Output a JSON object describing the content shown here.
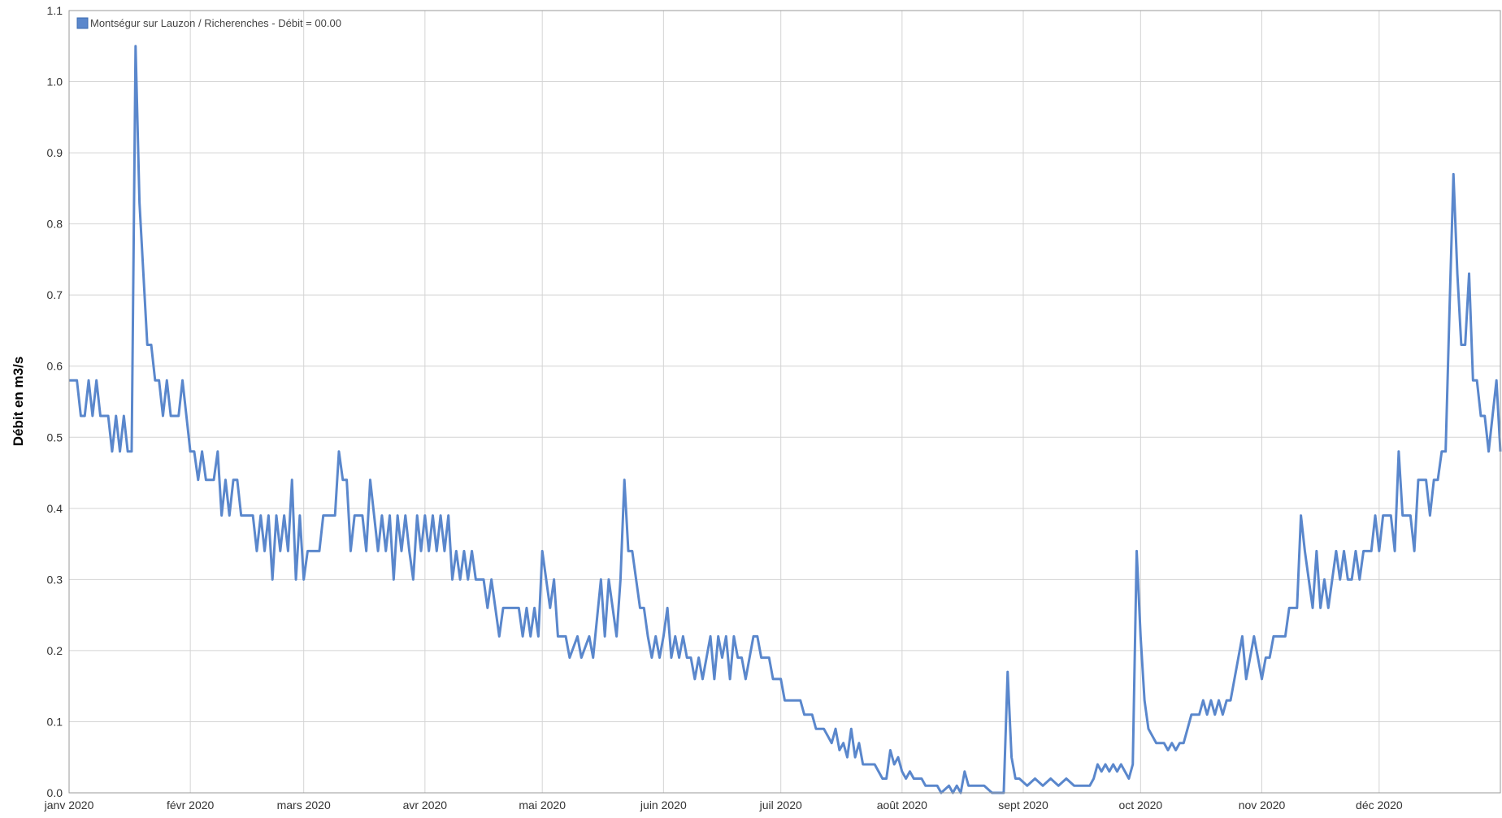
{
  "chart_data": {
    "type": "line",
    "y_label": "Débit en m3/s",
    "grid": true,
    "legend_position": "top-left",
    "xlim": [
      0,
      366
    ],
    "xticks": [
      {
        "value": 0,
        "label": "janv 2020"
      },
      {
        "value": 31,
        "label": "févr 2020"
      },
      {
        "value": 60,
        "label": "mars 2020"
      },
      {
        "value": 91,
        "label": "avr 2020"
      },
      {
        "value": 121,
        "label": "mai 2020"
      },
      {
        "value": 152,
        "label": "juin 2020"
      },
      {
        "value": 182,
        "label": "juil 2020"
      },
      {
        "value": 213,
        "label": "août 2020"
      },
      {
        "value": 244,
        "label": "sept 2020"
      },
      {
        "value": 274,
        "label": "oct 2020"
      },
      {
        "value": 305,
        "label": "nov 2020"
      },
      {
        "value": 335,
        "label": "déc 2020"
      }
    ],
    "ylim": [
      0,
      1.1
    ],
    "yticks": [
      {
        "value": 0,
        "label": "0.0"
      },
      0.1,
      0.2,
      0.3,
      0.4,
      0.5,
      0.6,
      0.7,
      0.8,
      0.9,
      {
        "value": 1,
        "label": "1.0"
      },
      1.1
    ],
    "x": [
      0,
      1,
      2,
      3,
      4,
      5,
      6,
      7,
      8,
      9,
      10,
      11,
      12,
      13,
      14,
      15,
      16,
      17,
      18,
      19,
      20,
      21,
      22,
      23,
      24,
      25,
      26,
      27,
      28,
      29,
      30,
      31,
      32,
      33,
      34,
      35,
      36,
      37,
      38,
      39,
      40,
      41,
      42,
      43,
      44,
      45,
      46,
      47,
      48,
      49,
      50,
      51,
      52,
      53,
      54,
      55,
      56,
      57,
      58,
      59,
      60,
      61,
      62,
      63,
      64,
      65,
      66,
      67,
      68,
      69,
      70,
      71,
      72,
      73,
      74,
      75,
      76,
      77,
      78,
      79,
      80,
      81,
      82,
      83,
      84,
      85,
      86,
      87,
      88,
      89,
      90,
      91,
      92,
      93,
      94,
      95,
      96,
      97,
      98,
      99,
      100,
      101,
      102,
      103,
      104,
      105,
      106,
      107,
      108,
      109,
      110,
      111,
      113,
      115,
      116,
      117,
      118,
      119,
      120,
      121,
      123,
      124,
      125,
      127,
      128,
      130,
      131,
      133,
      134,
      136,
      137,
      138,
      139,
      140,
      141,
      142,
      143,
      144,
      145,
      146,
      147,
      148,
      149,
      150,
      151,
      152,
      153,
      154,
      155,
      156,
      157,
      158,
      159,
      160,
      161,
      162,
      163,
      164,
      165,
      166,
      167,
      168,
      169,
      170,
      171,
      172,
      173,
      174,
      175,
      176,
      177,
      178,
      179,
      180,
      181,
      182,
      183,
      185,
      187,
      188,
      190,
      191,
      193,
      194,
      195,
      196,
      197,
      198,
      199,
      200,
      201,
      202,
      203,
      204,
      206,
      207,
      208,
      209,
      210,
      211,
      212,
      213,
      214,
      215,
      216,
      218,
      219,
      221,
      222,
      223,
      225,
      226,
      227,
      228,
      229,
      230,
      232,
      234,
      236,
      239,
      240,
      241,
      242,
      243,
      245,
      247,
      249,
      251,
      253,
      255,
      257,
      259,
      261,
      262,
      263,
      264,
      265,
      266,
      267,
      268,
      269,
      270,
      271,
      272,
      273,
      274,
      275,
      276,
      277,
      278,
      280,
      281,
      282,
      283,
      284,
      285,
      286,
      287,
      289,
      290,
      291,
      292,
      293,
      294,
      295,
      296,
      297,
      298,
      299,
      300,
      301,
      302,
      303,
      304,
      305,
      306,
      307,
      308,
      310,
      311,
      312,
      314,
      315,
      316,
      317,
      318,
      319,
      320,
      321,
      322,
      323,
      324,
      325,
      326,
      327,
      328,
      329,
      330,
      331,
      333,
      334,
      335,
      336,
      338,
      339,
      340,
      341,
      343,
      344,
      345,
      347,
      348,
      349,
      350,
      351,
      352,
      353,
      354,
      355,
      356,
      357,
      358,
      359,
      360,
      361,
      362,
      363,
      364,
      365,
      366
    ],
    "series": [
      {
        "name": "Montségur sur Lauzon / Richerenches - Débit = 00.00",
        "color": "#5a87cc",
        "values": [
          0.58,
          0.58,
          0.58,
          0.53,
          0.53,
          0.58,
          0.53,
          0.58,
          0.53,
          0.53,
          0.53,
          0.48,
          0.53,
          0.48,
          0.53,
          0.48,
          0.48,
          1.05,
          0.83,
          0.73,
          0.63,
          0.63,
          0.58,
          0.58,
          0.53,
          0.58,
          0.53,
          0.53,
          0.53,
          0.58,
          0.53,
          0.48,
          0.48,
          0.44,
          0.48,
          0.44,
          0.44,
          0.44,
          0.48,
          0.39,
          0.44,
          0.39,
          0.44,
          0.44,
          0.39,
          0.39,
          0.39,
          0.39,
          0.34,
          0.39,
          0.34,
          0.39,
          0.3,
          0.39,
          0.34,
          0.39,
          0.34,
          0.44,
          0.3,
          0.39,
          0.3,
          0.34,
          0.34,
          0.34,
          0.34,
          0.39,
          0.39,
          0.39,
          0.39,
          0.48,
          0.44,
          0.44,
          0.34,
          0.39,
          0.39,
          0.39,
          0.34,
          0.44,
          0.39,
          0.34,
          0.39,
          0.34,
          0.39,
          0.3,
          0.39,
          0.34,
          0.39,
          0.34,
          0.3,
          0.39,
          0.34,
          0.39,
          0.34,
          0.39,
          0.34,
          0.39,
          0.34,
          0.39,
          0.3,
          0.34,
          0.3,
          0.34,
          0.3,
          0.34,
          0.3,
          0.3,
          0.3,
          0.26,
          0.3,
          0.26,
          0.22,
          0.26,
          0.26,
          0.26,
          0.22,
          0.26,
          0.22,
          0.26,
          0.22,
          0.34,
          0.26,
          0.3,
          0.22,
          0.22,
          0.19,
          0.22,
          0.19,
          0.22,
          0.19,
          0.3,
          0.22,
          0.3,
          0.26,
          0.22,
          0.3,
          0.44,
          0.34,
          0.34,
          0.3,
          0.26,
          0.26,
          0.22,
          0.19,
          0.22,
          0.19,
          0.22,
          0.26,
          0.19,
          0.22,
          0.19,
          0.22,
          0.19,
          0.19,
          0.16,
          0.19,
          0.16,
          0.19,
          0.22,
          0.16,
          0.22,
          0.19,
          0.22,
          0.16,
          0.22,
          0.19,
          0.19,
          0.16,
          0.19,
          0.22,
          0.22,
          0.19,
          0.19,
          0.19,
          0.16,
          0.16,
          0.16,
          0.13,
          0.13,
          0.13,
          0.11,
          0.11,
          0.09,
          0.09,
          0.08,
          0.07,
          0.09,
          0.06,
          0.07,
          0.05,
          0.09,
          0.05,
          0.07,
          0.04,
          0.04,
          0.04,
          0.03,
          0.02,
          0.02,
          0.06,
          0.04,
          0.05,
          0.03,
          0.02,
          0.03,
          0.02,
          0.02,
          0.01,
          0.01,
          0.01,
          0,
          0.01,
          0,
          0.01,
          0,
          0.03,
          0.01,
          0.01,
          0.01,
          0,
          0,
          0.17,
          0.05,
          0.02,
          0.02,
          0.01,
          0.02,
          0.01,
          0.02,
          0.01,
          0.02,
          0.01,
          0.01,
          0.01,
          0.02,
          0.04,
          0.03,
          0.04,
          0.03,
          0.04,
          0.03,
          0.04,
          0.03,
          0.02,
          0.04,
          0.34,
          0.22,
          0.13,
          0.09,
          0.08,
          0.07,
          0.07,
          0.06,
          0.07,
          0.06,
          0.07,
          0.07,
          0.09,
          0.11,
          0.11,
          0.13,
          0.11,
          0.13,
          0.11,
          0.13,
          0.11,
          0.13,
          0.13,
          0.16,
          0.19,
          0.22,
          0.16,
          0.19,
          0.22,
          0.19,
          0.16,
          0.19,
          0.19,
          0.22,
          0.22,
          0.22,
          0.26,
          0.26,
          0.39,
          0.34,
          0.3,
          0.26,
          0.34,
          0.26,
          0.3,
          0.26,
          0.3,
          0.34,
          0.3,
          0.34,
          0.3,
          0.3,
          0.34,
          0.3,
          0.34,
          0.34,
          0.39,
          0.34,
          0.39,
          0.39,
          0.34,
          0.48,
          0.39,
          0.39,
          0.34,
          0.44,
          0.44,
          0.39,
          0.44,
          0.44,
          0.48,
          0.48,
          0.68,
          0.87,
          0.73,
          0.63,
          0.63,
          0.73,
          0.58,
          0.58,
          0.53,
          0.53,
          0.48,
          0.53,
          0.58,
          0.48
        ]
      }
    ]
  }
}
